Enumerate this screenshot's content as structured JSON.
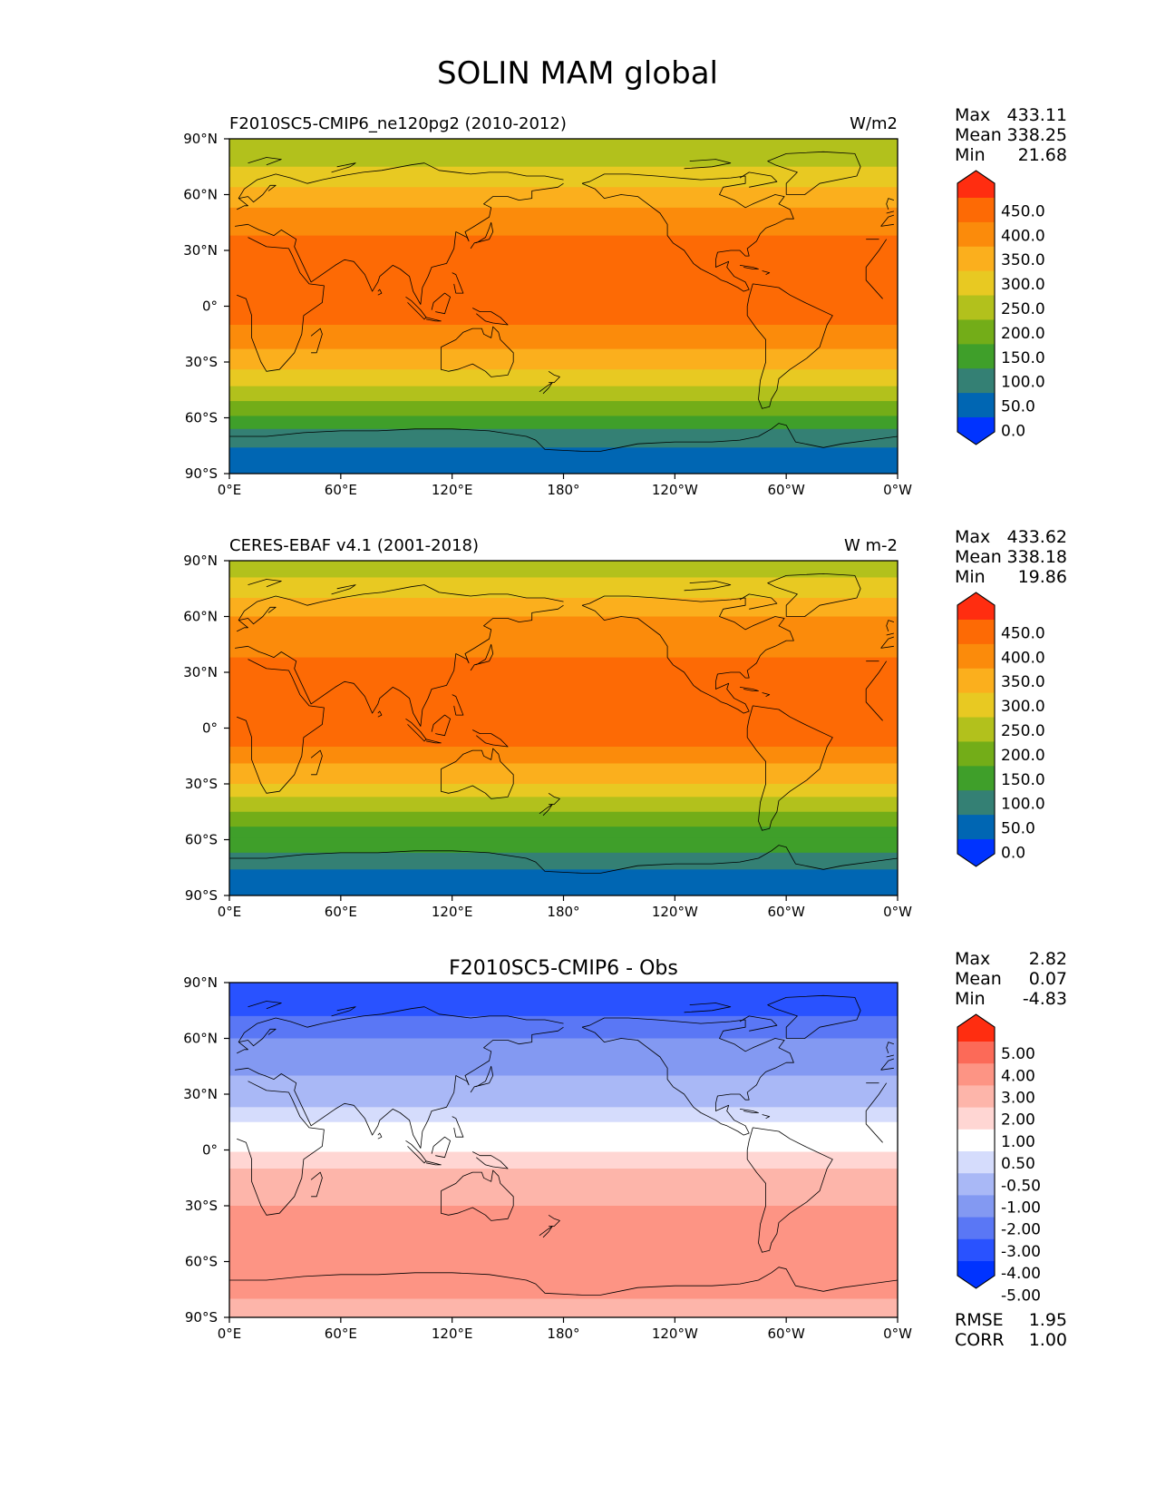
{
  "figure": {
    "title": "SOLIN MAM global"
  },
  "axes": {
    "x_ticks": [
      "0°E",
      "60°E",
      "120°E",
      "180°",
      "120°W",
      "60°W",
      "0°W"
    ],
    "y_ticks": [
      "90°N",
      "60°N",
      "30°N",
      "0°",
      "30°S",
      "60°S",
      "90°S"
    ]
  },
  "colors": {
    "abs_cmap": [
      "#0033ff",
      "#0066b3",
      "#348074",
      "#3f9f2a",
      "#73ad18",
      "#b2c11c",
      "#e8c922",
      "#fbaf1d",
      "#fb8b0b",
      "#fd6a05",
      "#ff2d10"
    ],
    "diff_cmap": [
      "#0033ff",
      "#2952ff",
      "#5a77f5",
      "#8399f2",
      "#a9b8f6",
      "#d5dcfc",
      "#ffffff",
      "#ffd6d3",
      "#fdb5aa",
      "#fd9484",
      "#fc6a58",
      "#ff2d10"
    ],
    "coastline": "#000000"
  },
  "chart_data": [
    {
      "type": "heatmap",
      "title": "",
      "left_title": "F2010SC5-CMIP6_ne120pg2 (2010-2012)",
      "units": "W/m2",
      "stats": {
        "max_label": "Max",
        "max": "433.11",
        "mean_label": "Mean",
        "mean": "338.25",
        "min_label": "Min",
        "min": "21.68"
      },
      "colorbar": {
        "ticks": [
          "450.0",
          "400.0",
          "350.0",
          "300.0",
          "250.0",
          "200.0",
          "150.0",
          "100.0",
          "50.0",
          "0.0"
        ],
        "extend": "both"
      },
      "xlim": [
        0,
        360
      ],
      "ylim": [
        -90,
        90
      ],
      "zonal_bands": [
        {
          "lat_range": [
            75,
            90
          ],
          "value": 225
        },
        {
          "lat_range": [
            64,
            75
          ],
          "value": 275
        },
        {
          "lat_range": [
            53,
            64
          ],
          "value": 325
        },
        {
          "lat_range": [
            38,
            53
          ],
          "value": 375
        },
        {
          "lat_range": [
            -10,
            38
          ],
          "value": 425
        },
        {
          "lat_range": [
            -23,
            -10
          ],
          "value": 375
        },
        {
          "lat_range": [
            -34,
            -23
          ],
          "value": 325
        },
        {
          "lat_range": [
            -43,
            -34
          ],
          "value": 275
        },
        {
          "lat_range": [
            -51,
            -43
          ],
          "value": 225
        },
        {
          "lat_range": [
            -59,
            -51
          ],
          "value": 175
        },
        {
          "lat_range": [
            -66,
            -59
          ],
          "value": 125
        },
        {
          "lat_range": [
            -76,
            -66
          ],
          "value": 75
        },
        {
          "lat_range": [
            -90,
            -76
          ],
          "value": 25
        }
      ]
    },
    {
      "type": "heatmap",
      "title": "",
      "left_title": "CERES-EBAF v4.1 (2001-2018)",
      "units": "W m-2",
      "stats": {
        "max_label": "Max",
        "max": "433.62",
        "mean_label": "Mean",
        "mean": "338.18",
        "min_label": "Min",
        "min": "19.86"
      },
      "colorbar": {
        "ticks": [
          "450.0",
          "400.0",
          "350.0",
          "300.0",
          "250.0",
          "200.0",
          "150.0",
          "100.0",
          "50.0",
          "0.0"
        ],
        "extend": "both"
      },
      "xlim": [
        0,
        360
      ],
      "ylim": [
        -90,
        90
      ],
      "zonal_bands": [
        {
          "lat_range": [
            81,
            90
          ],
          "value": 225
        },
        {
          "lat_range": [
            70,
            81
          ],
          "value": 275
        },
        {
          "lat_range": [
            60,
            70
          ],
          "value": 325
        },
        {
          "lat_range": [
            47,
            60
          ],
          "value": 375
        },
        {
          "lat_range": [
            38,
            47
          ],
          "value": 375
        },
        {
          "lat_range": [
            -10,
            38
          ],
          "value": 425
        },
        {
          "lat_range": [
            -19,
            -10
          ],
          "value": 375
        },
        {
          "lat_range": [
            -30,
            -19
          ],
          "value": 325
        },
        {
          "lat_range": [
            -37,
            -30
          ],
          "value": 275
        },
        {
          "lat_range": [
            -45,
            -37
          ],
          "value": 225
        },
        {
          "lat_range": [
            -53,
            -45
          ],
          "value": 175
        },
        {
          "lat_range": [
            -59,
            -53
          ],
          "value": 125
        },
        {
          "lat_range": [
            -67,
            -59
          ],
          "value": 125
        },
        {
          "lat_range": [
            -76,
            -67
          ],
          "value": 75
        },
        {
          "lat_range": [
            -90,
            -76
          ],
          "value": 25
        }
      ]
    },
    {
      "type": "heatmap",
      "title": "F2010SC5-CMIP6 - Obs",
      "left_title": "",
      "units": "",
      "stats": {
        "max_label": "Max",
        "max": "2.82",
        "mean_label": "Mean",
        "mean": "0.07",
        "min_label": "Min",
        "min": "-4.83"
      },
      "rmse_label": "RMSE",
      "rmse": "1.95",
      "corr_label": "CORR",
      "corr": "1.00",
      "colorbar": {
        "ticks": [
          "5.00",
          "4.00",
          "3.00",
          "2.00",
          "1.00",
          "0.50",
          "-0.50",
          "-1.00",
          "-2.00",
          "-3.00",
          "-4.00",
          "-5.00"
        ],
        "extend": "both"
      },
      "xlim": [
        0,
        360
      ],
      "ylim": [
        -90,
        90
      ],
      "zonal_bands": [
        {
          "lat_range": [
            72,
            90
          ],
          "value": -4.5
        },
        {
          "lat_range": [
            60,
            72
          ],
          "value": -3.5
        },
        {
          "lat_range": [
            40,
            60
          ],
          "value": -2.5
        },
        {
          "lat_range": [
            23,
            40
          ],
          "value": -1.5
        },
        {
          "lat_range": [
            15,
            23
          ],
          "value": -0.75
        },
        {
          "lat_range": [
            -1,
            15
          ],
          "value": 0
        },
        {
          "lat_range": [
            -10,
            -1
          ],
          "value": 0.75
        },
        {
          "lat_range": [
            -30,
            -10
          ],
          "value": 1.5
        },
        {
          "lat_range": [
            -68,
            -30
          ],
          "value": 2.5
        },
        {
          "lat_range": [
            -80,
            -68
          ],
          "value": 2.5
        },
        {
          "lat_range": [
            -90,
            -80
          ],
          "value": 1.5
        }
      ]
    }
  ]
}
